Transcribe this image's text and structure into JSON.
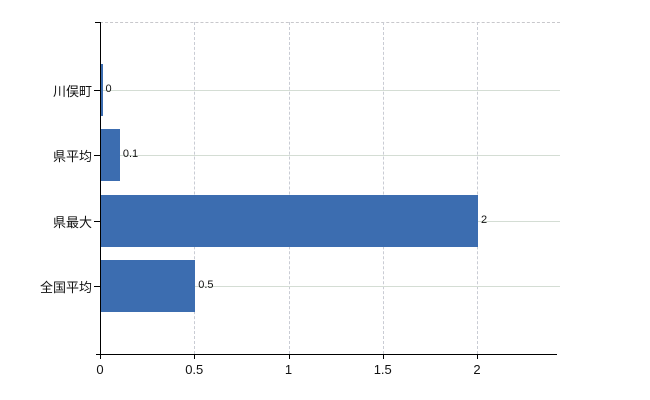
{
  "chart_data": {
    "type": "bar",
    "orientation": "horizontal",
    "title": "",
    "xlabel": "",
    "ylabel": "",
    "legend_position": "none",
    "grid": "on",
    "categories": [
      "川俣町",
      "県平均",
      "県最大",
      "全国平均"
    ],
    "values": [
      0,
      0.1,
      2,
      0.5
    ],
    "value_labels": [
      "0",
      "0.1",
      "2",
      "0.5"
    ],
    "xticks": [
      0,
      0.5,
      1,
      1.5,
      2
    ],
    "xtick_labels": [
      "0",
      "0.5",
      "1",
      "1.5",
      "2"
    ],
    "xlim": [
      0,
      2.44
    ],
    "colors": {
      "bar": "#3c6db0",
      "axis": "#000000",
      "hgrid": "#d4ddd4",
      "vgrid": "#c9ccd4",
      "top_border": "#c8c8cc",
      "text": "#111111",
      "background": "#ffffff"
    }
  }
}
